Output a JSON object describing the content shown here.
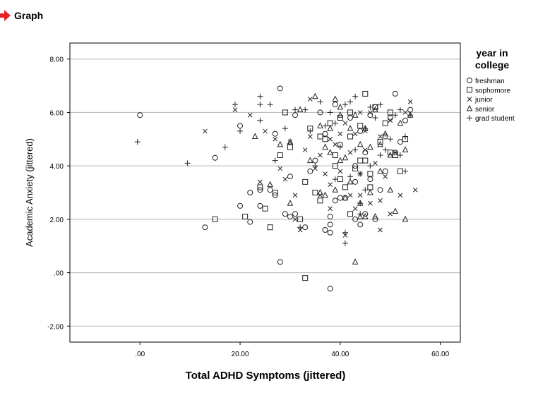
{
  "header": {
    "title": "Graph"
  },
  "chart_data": {
    "type": "scatter",
    "xlabel": "Total ADHD Symptoms (jittered)",
    "ylabel": "Academic Anxiety (jittered)",
    "xlim": [
      -14,
      64
    ],
    "ylim": [
      -2.6,
      8.6
    ],
    "xticks": [
      0,
      20,
      40,
      60
    ],
    "xtick_labels": [
      ".00",
      "20.00",
      "40.00",
      "60.00"
    ],
    "yticks": [
      -2,
      0,
      2,
      4,
      6,
      8
    ],
    "ytick_labels": [
      "-2.00",
      ".00",
      "2.00",
      "4.00",
      "6.00",
      "8.00"
    ],
    "grid": "horizontal",
    "legend_position": "right",
    "legend_title": "year in college",
    "series": [
      {
        "name": "freshman",
        "marker": "circle",
        "points": [
          [
            0,
            5.9
          ],
          [
            15,
            4.3
          ],
          [
            13,
            1.7
          ],
          [
            20,
            2.5
          ],
          [
            22,
            3.0
          ],
          [
            22,
            1.9
          ],
          [
            24,
            3.1
          ],
          [
            26,
            3.1
          ],
          [
            27,
            2.9
          ],
          [
            27,
            5.2
          ],
          [
            28,
            6.9
          ],
          [
            28,
            0.4
          ],
          [
            29,
            2.2
          ],
          [
            30,
            2.1
          ],
          [
            30,
            3.6
          ],
          [
            31,
            5.9
          ],
          [
            33,
            1.7
          ],
          [
            34,
            3.8
          ],
          [
            36,
            6.0
          ],
          [
            37,
            1.6
          ],
          [
            38,
            1.5
          ],
          [
            38,
            1.8
          ],
          [
            38,
            2.1
          ],
          [
            38,
            -0.6
          ],
          [
            39,
            2.7
          ],
          [
            40,
            2.8
          ],
          [
            40,
            4.8
          ],
          [
            41,
            2.8
          ],
          [
            42,
            5.8
          ],
          [
            43,
            4.0
          ],
          [
            43,
            3.4
          ],
          [
            44,
            1.8
          ],
          [
            44,
            5.3
          ],
          [
            45,
            2.2
          ],
          [
            45,
            4.5
          ],
          [
            46,
            3.5
          ],
          [
            46,
            5.9
          ],
          [
            47,
            6.2
          ],
          [
            48,
            3.1
          ],
          [
            49,
            5.1
          ],
          [
            49,
            3.8
          ],
          [
            50,
            5.8
          ],
          [
            51,
            6.7
          ],
          [
            51,
            4.5
          ],
          [
            52,
            4.9
          ],
          [
            53,
            5.7
          ],
          [
            54,
            6.1
          ],
          [
            20,
            5.5
          ],
          [
            24,
            2.5
          ],
          [
            31,
            2.2
          ],
          [
            43,
            2.0
          ],
          [
            47,
            2.0
          ],
          [
            35,
            4.2
          ],
          [
            37,
            5.2
          ],
          [
            39,
            6.3
          ]
        ]
      },
      {
        "name": "sophomore",
        "marker": "square",
        "points": [
          [
            15,
            2.0
          ],
          [
            21,
            2.1
          ],
          [
            24,
            3.2
          ],
          [
            25,
            2.4
          ],
          [
            26,
            1.7
          ],
          [
            27,
            3.0
          ],
          [
            28,
            4.4
          ],
          [
            29,
            6.0
          ],
          [
            30,
            4.7
          ],
          [
            32,
            2.0
          ],
          [
            33,
            3.4
          ],
          [
            33,
            -0.2
          ],
          [
            34,
            5.4
          ],
          [
            35,
            3.0
          ],
          [
            36,
            2.7
          ],
          [
            36,
            5.1
          ],
          [
            37,
            5.0
          ],
          [
            38,
            5.6
          ],
          [
            39,
            4.0
          ],
          [
            39,
            4.4
          ],
          [
            40,
            3.5
          ],
          [
            40,
            5.8
          ],
          [
            41,
            3.2
          ],
          [
            42,
            5.1
          ],
          [
            42,
            2.2
          ],
          [
            43,
            3.9
          ],
          [
            44,
            4.2
          ],
          [
            44,
            5.5
          ],
          [
            45,
            6.7
          ],
          [
            45,
            4.2
          ],
          [
            46,
            3.2
          ],
          [
            47,
            6.2
          ],
          [
            48,
            4.9
          ],
          [
            49,
            5.6
          ],
          [
            50,
            4.5
          ],
          [
            51,
            4.4
          ],
          [
            52,
            3.8
          ],
          [
            53,
            5.0
          ],
          [
            42,
            6.0
          ],
          [
            46,
            3.7
          ],
          [
            50,
            6.0
          ]
        ]
      },
      {
        "name": "junior",
        "marker": "x",
        "points": [
          [
            13,
            5.3
          ],
          [
            19,
            6.1
          ],
          [
            22,
            5.9
          ],
          [
            24,
            3.4
          ],
          [
            25,
            5.3
          ],
          [
            27,
            5.0
          ],
          [
            28,
            3.9
          ],
          [
            29,
            3.5
          ],
          [
            30,
            4.9
          ],
          [
            31,
            2.9
          ],
          [
            31,
            2.0
          ],
          [
            32,
            1.6
          ],
          [
            33,
            4.6
          ],
          [
            34,
            5.1
          ],
          [
            34,
            6.5
          ],
          [
            35,
            3.9
          ],
          [
            36,
            2.9
          ],
          [
            36,
            4.4
          ],
          [
            37,
            3.7
          ],
          [
            38,
            5.0
          ],
          [
            38,
            2.4
          ],
          [
            39,
            4.8
          ],
          [
            40,
            5.2
          ],
          [
            40,
            3.8
          ],
          [
            41,
            5.6
          ],
          [
            41,
            1.4
          ],
          [
            42,
            2.9
          ],
          [
            42,
            4.5
          ],
          [
            43,
            5.2
          ],
          [
            43,
            2.4
          ],
          [
            44,
            6.0
          ],
          [
            44,
            3.7
          ],
          [
            45,
            5.3
          ],
          [
            45,
            4.6
          ],
          [
            46,
            2.6
          ],
          [
            46,
            6.0
          ],
          [
            47,
            4.1
          ],
          [
            48,
            1.6
          ],
          [
            48,
            5.1
          ],
          [
            49,
            3.6
          ],
          [
            50,
            2.2
          ],
          [
            50,
            5.7
          ],
          [
            51,
            4.5
          ],
          [
            52,
            2.9
          ],
          [
            53,
            6.0
          ],
          [
            54,
            6.4
          ],
          [
            55,
            3.1
          ],
          [
            38,
            3.3
          ],
          [
            44,
            2.9
          ],
          [
            48,
            2.7
          ]
        ]
      },
      {
        "name": "senior",
        "marker": "triangle",
        "points": [
          [
            23,
            5.1
          ],
          [
            26,
            3.3
          ],
          [
            28,
            4.8
          ],
          [
            30,
            2.6
          ],
          [
            30,
            4.9
          ],
          [
            32,
            6.1
          ],
          [
            34,
            4.2
          ],
          [
            35,
            6.6
          ],
          [
            36,
            3.0
          ],
          [
            37,
            4.7
          ],
          [
            37,
            2.9
          ],
          [
            38,
            4.5
          ],
          [
            38,
            5.4
          ],
          [
            39,
            6.5
          ],
          [
            39,
            3.1
          ],
          [
            40,
            4.2
          ],
          [
            40,
            5.9
          ],
          [
            41,
            2.8
          ],
          [
            41,
            4.3
          ],
          [
            42,
            5.4
          ],
          [
            42,
            3.4
          ],
          [
            43,
            0.4
          ],
          [
            43,
            5.9
          ],
          [
            44,
            4.8
          ],
          [
            44,
            2.1
          ],
          [
            45,
            2.1
          ],
          [
            45,
            5.4
          ],
          [
            46,
            3.0
          ],
          [
            46,
            4.7
          ],
          [
            47,
            2.1
          ],
          [
            47,
            6.1
          ],
          [
            48,
            3.8
          ],
          [
            48,
            4.8
          ],
          [
            49,
            5.2
          ],
          [
            50,
            3.1
          ],
          [
            50,
            4.4
          ],
          [
            51,
            2.3
          ],
          [
            52,
            5.6
          ],
          [
            53,
            2.0
          ],
          [
            53,
            4.6
          ],
          [
            54,
            5.9
          ],
          [
            40,
            6.2
          ],
          [
            44,
            2.6
          ],
          [
            36,
            5.5
          ]
        ]
      },
      {
        "name": "grad student",
        "marker": "plus",
        "points": [
          [
            -0.5,
            4.9
          ],
          [
            9.5,
            4.1
          ],
          [
            17,
            4.7
          ],
          [
            19,
            6.3
          ],
          [
            20,
            5.3
          ],
          [
            24,
            6.6
          ],
          [
            24,
            5.7
          ],
          [
            26,
            6.3
          ],
          [
            27,
            4.2
          ],
          [
            29,
            5.4
          ],
          [
            31,
            6.1
          ],
          [
            32,
            1.7
          ],
          [
            33,
            6.1
          ],
          [
            34,
            5.3
          ],
          [
            35,
            4.0
          ],
          [
            36,
            6.4
          ],
          [
            37,
            5.5
          ],
          [
            38,
            6.0
          ],
          [
            39,
            3.5
          ],
          [
            39,
            5.6
          ],
          [
            40,
            4.7
          ],
          [
            41,
            6.3
          ],
          [
            41,
            1.5
          ],
          [
            41,
            1.1
          ],
          [
            42,
            3.6
          ],
          [
            42,
            6.4
          ],
          [
            43,
            6.6
          ],
          [
            43,
            4.6
          ],
          [
            44,
            3.7
          ],
          [
            44,
            2.6
          ],
          [
            45,
            3.1
          ],
          [
            45,
            5.4
          ],
          [
            46,
            6.2
          ],
          [
            46,
            4.0
          ],
          [
            47,
            5.8
          ],
          [
            48,
            4.4
          ],
          [
            48,
            6.3
          ],
          [
            49,
            4.6
          ],
          [
            50,
            5.0
          ],
          [
            51,
            5.9
          ],
          [
            52,
            4.4
          ],
          [
            52,
            6.1
          ],
          [
            53,
            5.1
          ],
          [
            53,
            3.8
          ],
          [
            54,
            5.9
          ],
          [
            24,
            6.3
          ],
          [
            44,
            2.2
          ]
        ]
      }
    ]
  }
}
